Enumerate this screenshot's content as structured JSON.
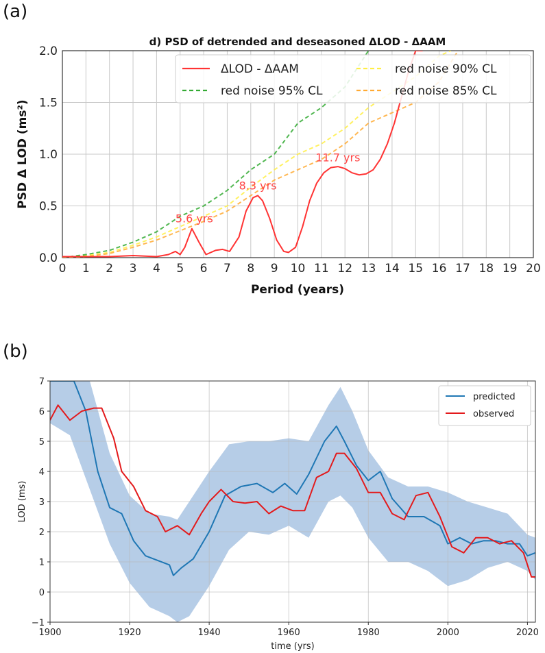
{
  "panels": {
    "a_label": "(a)",
    "b_label": "(b)"
  },
  "chart_data": [
    {
      "type": "line",
      "title": "d) PSD of detrended and deseasoned ΔLOD - ΔAAM",
      "xlabel": "Period (years)",
      "ylabel": "PSD Δ LOD (ms²)",
      "xlim": [
        0,
        20
      ],
      "ylim": [
        0,
        2.0
      ],
      "xticks": [
        "0",
        "1",
        "2",
        "3",
        "4",
        "5",
        "6",
        "7",
        "8",
        "9",
        "10",
        "11",
        "12",
        "13",
        "14",
        "15",
        "16",
        "17",
        "18",
        "19",
        "20"
      ],
      "yticks": [
        "0.0",
        "0.5",
        "1.0",
        "1.5",
        "2.0"
      ],
      "grid": true,
      "legend_position": "top-right",
      "series": [
        {
          "name": "ΔLOD - ΔAAM",
          "color": "#ff3333",
          "style": "solid",
          "x": [
            0,
            1,
            2,
            3,
            4,
            4.5,
            4.8,
            5.0,
            5.2,
            5.5,
            5.8,
            6.1,
            6.5,
            6.8,
            7.1,
            7.5,
            7.8,
            8.1,
            8.3,
            8.5,
            8.8,
            9.1,
            9.4,
            9.6,
            9.9,
            10.2,
            10.5,
            10.8,
            11.1,
            11.4,
            11.7,
            12.0,
            12.3,
            12.6,
            12.9,
            13.2,
            13.5,
            13.8,
            14.1,
            14.4,
            14.7,
            15.0,
            15.3
          ],
          "y": [
            0.01,
            0.01,
            0.01,
            0.02,
            0.01,
            0.03,
            0.06,
            0.03,
            0.1,
            0.28,
            0.15,
            0.03,
            0.07,
            0.08,
            0.06,
            0.2,
            0.45,
            0.58,
            0.6,
            0.55,
            0.38,
            0.17,
            0.06,
            0.05,
            0.1,
            0.3,
            0.55,
            0.72,
            0.82,
            0.87,
            0.88,
            0.86,
            0.82,
            0.8,
            0.81,
            0.85,
            0.95,
            1.1,
            1.3,
            1.55,
            1.8,
            2.0,
            2.0
          ]
        },
        {
          "name": "red noise 90% CL",
          "color": "#ffee44",
          "style": "dashed",
          "x": [
            0,
            1,
            2,
            3,
            4,
            5,
            6,
            7,
            8,
            9,
            10,
            11,
            12,
            13,
            14,
            15,
            15.5,
            16,
            16.5
          ],
          "y": [
            0.0,
            0.02,
            0.05,
            0.12,
            0.2,
            0.3,
            0.4,
            0.5,
            0.68,
            0.85,
            1.0,
            1.1,
            1.25,
            1.45,
            1.6,
            1.75,
            1.85,
            1.95,
            2.0
          ]
        },
        {
          "name": "red noise 95% CL",
          "color": "#33aa33",
          "style": "dashed",
          "x": [
            0,
            1,
            2,
            3,
            4,
            5,
            6,
            7,
            8,
            9,
            10,
            11,
            12,
            13
          ],
          "y": [
            0.0,
            0.03,
            0.07,
            0.15,
            0.25,
            0.4,
            0.5,
            0.65,
            0.85,
            1.0,
            1.3,
            1.45,
            1.65,
            2.0
          ]
        },
        {
          "name": "red noise 85% CL",
          "color": "#ffaa33",
          "style": "dashed",
          "x": [
            0,
            1,
            2,
            3,
            4,
            5,
            6,
            7,
            8,
            9,
            10,
            11,
            12,
            13,
            14,
            15,
            16,
            16.8
          ],
          "y": [
            0.0,
            0.01,
            0.04,
            0.1,
            0.17,
            0.26,
            0.35,
            0.45,
            0.6,
            0.75,
            0.85,
            0.95,
            1.1,
            1.3,
            1.4,
            1.5,
            1.7,
            2.0
          ]
        }
      ],
      "annotations": [
        {
          "text": "5.6 yrs",
          "x": 5.6,
          "y": 0.34
        },
        {
          "text": "8.3 yrs",
          "x": 8.3,
          "y": 0.66
        },
        {
          "text": "11.7 yrs",
          "x": 11.7,
          "y": 0.93
        }
      ]
    },
    {
      "type": "line",
      "title": "",
      "xlabel": "time (yrs)",
      "ylabel": "LOD (ms)",
      "xlim": [
        1900,
        2022
      ],
      "ylim": [
        -1,
        7
      ],
      "xticks": [
        "1900",
        "1920",
        "1940",
        "1960",
        "1980",
        "2000",
        "2020"
      ],
      "yticks": [
        "−1",
        "0",
        "1",
        "2",
        "3",
        "4",
        "5",
        "6",
        "7"
      ],
      "grid": true,
      "legend_position": "top-right",
      "band": {
        "color": "#aec8e4",
        "x": [
          1900,
          1905,
          1910,
          1915,
          1920,
          1925,
          1930,
          1932,
          1935,
          1940,
          1945,
          1950,
          1955,
          1960,
          1965,
          1970,
          1973,
          1976,
          1980,
          1985,
          1990,
          1995,
          2000,
          2005,
          2010,
          2015,
          2020,
          2022
        ],
        "upper": [
          7.0,
          7.0,
          7.0,
          4.6,
          3.2,
          2.6,
          2.5,
          2.4,
          3.0,
          4.0,
          4.9,
          5.0,
          5.0,
          5.1,
          5.0,
          6.2,
          6.8,
          6.0,
          4.7,
          3.8,
          3.5,
          3.5,
          3.3,
          3.0,
          2.8,
          2.6,
          1.9,
          1.8
        ],
        "lower": [
          5.6,
          5.2,
          3.4,
          1.6,
          0.3,
          -0.5,
          -0.8,
          -1.0,
          -0.8,
          0.2,
          1.4,
          2.0,
          1.9,
          2.2,
          1.8,
          3.0,
          3.2,
          2.8,
          1.8,
          1.0,
          1.0,
          0.7,
          0.2,
          0.4,
          0.8,
          1.0,
          0.7,
          0.4
        ]
      },
      "series": [
        {
          "name": "predicted",
          "color": "#1f77b4",
          "x": [
            1900,
            1903,
            1906,
            1909,
            1912,
            1915,
            1918,
            1921,
            1924,
            1927,
            1930,
            1931,
            1933,
            1936,
            1940,
            1944,
            1948,
            1952,
            1956,
            1959,
            1962,
            1965,
            1969,
            1972,
            1974,
            1977,
            1980,
            1983,
            1986,
            1990,
            1994,
            1998,
            2000,
            2003,
            2006,
            2009,
            2012,
            2015,
            2018,
            2020,
            2022
          ],
          "y": [
            7.0,
            7.0,
            7.0,
            6.0,
            4.0,
            2.8,
            2.6,
            1.7,
            1.2,
            1.05,
            0.9,
            0.55,
            0.8,
            1.1,
            2.0,
            3.2,
            3.5,
            3.6,
            3.3,
            3.6,
            3.25,
            3.9,
            5.0,
            5.5,
            5.0,
            4.2,
            3.7,
            4.0,
            3.1,
            2.5,
            2.5,
            2.2,
            1.6,
            1.8,
            1.6,
            1.7,
            1.7,
            1.6,
            1.6,
            1.2,
            1.3
          ]
        },
        {
          "name": "observed",
          "color": "#e31a1c",
          "x": [
            1900,
            1902,
            1905,
            1908,
            1911,
            1913,
            1916,
            1918,
            1921,
            1924,
            1927,
            1929,
            1932,
            1935,
            1938,
            1940,
            1943,
            1946,
            1949,
            1952,
            1955,
            1958,
            1961,
            1964,
            1967,
            1970,
            1972,
            1974,
            1977,
            1980,
            1983,
            1986,
            1989,
            1992,
            1995,
            1998,
            2001,
            2004,
            2007,
            2010,
            2013,
            2016,
            2019,
            2021,
            2022
          ],
          "y": [
            5.7,
            6.2,
            5.7,
            6.0,
            6.1,
            6.1,
            5.1,
            4.0,
            3.5,
            2.7,
            2.5,
            2.0,
            2.2,
            1.9,
            2.6,
            3.0,
            3.4,
            3.0,
            2.95,
            3.0,
            2.6,
            2.85,
            2.7,
            2.7,
            3.8,
            4.0,
            4.6,
            4.6,
            4.1,
            3.3,
            3.3,
            2.6,
            2.4,
            3.2,
            3.3,
            2.5,
            1.5,
            1.3,
            1.8,
            1.8,
            1.6,
            1.7,
            1.3,
            0.5,
            0.5
          ]
        }
      ]
    }
  ]
}
